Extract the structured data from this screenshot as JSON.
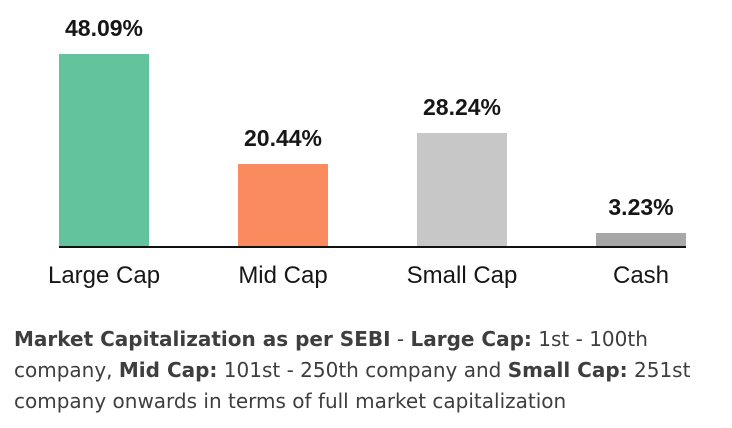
{
  "chart_data": {
    "type": "bar",
    "categories": [
      "Large Cap",
      "Mid Cap",
      "Small Cap",
      "Cash"
    ],
    "values": [
      48.09,
      20.44,
      28.24,
      3.23
    ],
    "value_labels": [
      "48.09%",
      "20.44%",
      "28.24%",
      "3.23%"
    ],
    "bar_colors": [
      "#62c39d",
      "#f98b5e",
      "#c7c7c7",
      "#a7a7a7"
    ],
    "title": "",
    "xlabel": "",
    "ylabel": "",
    "ylim": [
      0,
      55
    ],
    "grid": false,
    "legend": false,
    "value_label_position": "above-bar",
    "axis_line_color": "#111111"
  },
  "description": {
    "lines": [
      [
        {
          "text": "Market Capitalization as per SEBI",
          "bold": true
        },
        {
          "text": " - ",
          "bold": false
        },
        {
          "text": "Large Cap:",
          "bold": true
        },
        {
          "text": " 1st - 100th",
          "bold": false
        }
      ],
      [
        {
          "text": "company, ",
          "bold": false
        },
        {
          "text": "Mid Cap:",
          "bold": true
        },
        {
          "text": " 101st - 250th company and ",
          "bold": false
        },
        {
          "text": "Small Cap:",
          "bold": true
        },
        {
          "text": " 251st",
          "bold": false
        }
      ],
      [
        {
          "text": "company onwards in terms of full market capitalization",
          "bold": false
        }
      ]
    ],
    "text_color": "#3e3e3e"
  },
  "colors": {
    "background": "#ffffff",
    "axis": "#111111",
    "chart_label_text": "#161616",
    "large_cap_green": "#62c39d",
    "mid_cap_orange": "#f98b5e",
    "small_cap_gray": "#c7c7c7",
    "cash_gray": "#a7a7a7"
  }
}
